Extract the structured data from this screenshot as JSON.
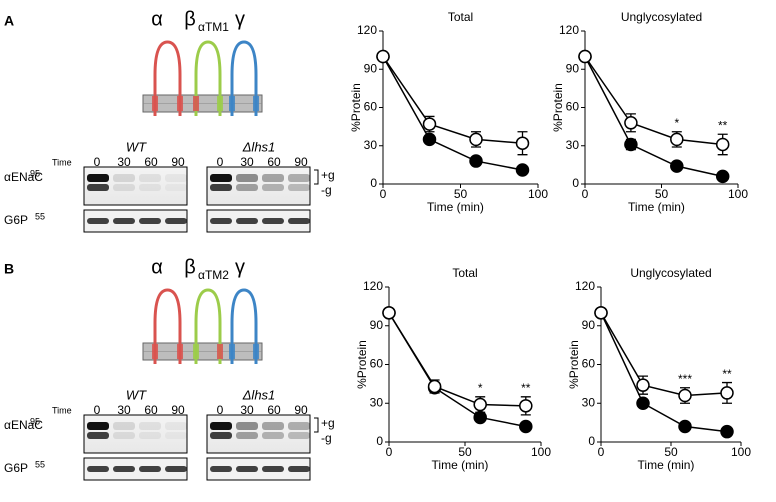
{
  "panels": [
    {
      "label": "A",
      "subunits": [
        "α",
        "β",
        "γ"
      ],
      "beta_subscript": "αTM1",
      "blot": {
        "strains": [
          "WT",
          "Δlhs1"
        ],
        "time_label": "Time",
        "times": [
          "0",
          "30",
          "60",
          "90"
        ],
        "rows": [
          {
            "name": "αENaC",
            "marker": "95"
          },
          {
            "name": "G6P",
            "marker": "55"
          }
        ],
        "bands": [
          "+g",
          "-g"
        ]
      }
    },
    {
      "label": "B",
      "subunits": [
        "α",
        "β",
        "γ"
      ],
      "beta_subscript": "αTM2",
      "blot": {
        "strains": [
          "WT",
          "Δlhs1"
        ],
        "time_label": "Time",
        "times": [
          "0",
          "30",
          "60",
          "90"
        ],
        "rows": [
          {
            "name": "αENaC",
            "marker": "95"
          },
          {
            "name": "G6P",
            "marker": "55"
          }
        ],
        "bands": [
          "+g",
          "-g"
        ]
      }
    }
  ],
  "chart_data": [
    {
      "type": "line",
      "title": "Total",
      "x_label": "Time (min)",
      "y_label": "%Protein",
      "x": [
        0,
        30,
        60,
        90
      ],
      "xlim": [
        0,
        100
      ],
      "xticks": [
        0,
        50,
        100
      ],
      "ylim": [
        0,
        120
      ],
      "yticks": [
        0,
        30,
        60,
        90,
        120
      ],
      "series": [
        {
          "color": "#000000",
          "marker_fill": "#000000",
          "values": [
            100,
            35,
            18,
            11
          ],
          "errors": [
            null,
            3,
            2,
            2
          ]
        },
        {
          "color": "#000000",
          "marker_fill": "#ffffff",
          "values": [
            100,
            47,
            35,
            32
          ],
          "errors": [
            null,
            6,
            6,
            9
          ]
        }
      ],
      "annotations": []
    },
    {
      "type": "line",
      "title": "Unglycosylated",
      "x_label": "Time (min)",
      "y_label": "%Protein",
      "x": [
        0,
        30,
        60,
        90
      ],
      "xlim": [
        0,
        100
      ],
      "xticks": [
        0,
        50,
        100
      ],
      "ylim": [
        0,
        120
      ],
      "yticks": [
        0,
        30,
        60,
        90,
        120
      ],
      "series": [
        {
          "color": "#000000",
          "marker_fill": "#000000",
          "values": [
            100,
            31,
            14,
            6
          ],
          "errors": [
            null,
            4,
            2,
            1
          ]
        },
        {
          "color": "#000000",
          "marker_fill": "#ffffff",
          "values": [
            100,
            48,
            35,
            31
          ],
          "errors": [
            null,
            7,
            6,
            8
          ]
        }
      ],
      "annotations": [
        {
          "text": "*",
          "x": 60
        },
        {
          "text": "**",
          "x": 90
        }
      ]
    },
    {
      "type": "line",
      "title": "Total",
      "x_label": "Time (min)",
      "y_label": "%Protein",
      "x": [
        0,
        30,
        60,
        90
      ],
      "xlim": [
        0,
        100
      ],
      "xticks": [
        0,
        50,
        100
      ],
      "ylim": [
        0,
        120
      ],
      "yticks": [
        0,
        30,
        60,
        90,
        120
      ],
      "series": [
        {
          "color": "#000000",
          "marker_fill": "#000000",
          "values": [
            100,
            42,
            19,
            12
          ],
          "errors": [
            null,
            3,
            2,
            2
          ]
        },
        {
          "color": "#000000",
          "marker_fill": "#ffffff",
          "values": [
            100,
            43,
            29,
            28
          ],
          "errors": [
            null,
            5,
            6,
            7
          ]
        }
      ],
      "annotations": [
        {
          "text": "*",
          "x": 60
        },
        {
          "text": "**",
          "x": 90
        }
      ]
    },
    {
      "type": "line",
      "title": "Unglycosylated",
      "x_label": "Time (min)",
      "y_label": "%Protein",
      "x": [
        0,
        30,
        60,
        90
      ],
      "xlim": [
        0,
        100
      ],
      "xticks": [
        0,
        50,
        100
      ],
      "ylim": [
        0,
        120
      ],
      "yticks": [
        0,
        30,
        60,
        90,
        120
      ],
      "series": [
        {
          "color": "#000000",
          "marker_fill": "#000000",
          "values": [
            100,
            30,
            12,
            8
          ],
          "errors": [
            null,
            3,
            2,
            1
          ]
        },
        {
          "color": "#000000",
          "marker_fill": "#ffffff",
          "values": [
            100,
            44,
            36,
            38
          ],
          "errors": [
            null,
            7,
            6,
            8
          ]
        }
      ],
      "annotations": [
        {
          "text": "***",
          "x": 60
        },
        {
          "text": "**",
          "x": 90
        }
      ]
    }
  ]
}
